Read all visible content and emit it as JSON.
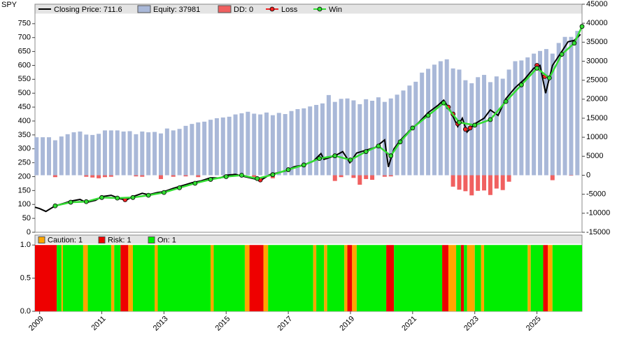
{
  "chart_data": [
    {
      "type": "combo",
      "title": "SPY",
      "xlim": [
        2008.85,
        2026.45
      ],
      "ylim": [
        0,
        820
      ],
      "yticks": [
        0,
        50,
        100,
        150,
        200,
        250,
        300,
        350,
        400,
        450,
        500,
        550,
        600,
        650,
        700,
        750
      ],
      "y2lim": [
        -15000,
        45000
      ],
      "y2ticks": [
        -15000,
        -10000,
        -5000,
        0,
        5000,
        10000,
        15000,
        20000,
        25000,
        30000,
        35000,
        40000,
        45000
      ],
      "series": [
        {
          "name": "Closing Price: 711.6",
          "type": "line",
          "color": "#000000",
          "x": [
            2008.85,
            2009.0,
            2009.2,
            2009.5,
            2009.8,
            2010.0,
            2010.3,
            2010.5,
            2010.8,
            2011.0,
            2011.3,
            2011.6,
            2011.8,
            2012.0,
            2012.3,
            2012.5,
            2012.8,
            2013.0,
            2013.3,
            2013.6,
            2013.9,
            2014.2,
            2014.5,
            2014.8,
            2015.0,
            2015.3,
            2015.6,
            2015.8,
            2016.0,
            2016.1,
            2016.4,
            2016.7,
            2016.9,
            2017.2,
            2017.5,
            2017.8,
            2018.05,
            2018.15,
            2018.5,
            2018.75,
            2018.98,
            2019.2,
            2019.5,
            2019.8,
            2020.1,
            2020.22,
            2020.4,
            2020.6,
            2020.9,
            2021.2,
            2021.5,
            2021.8,
            2022.0,
            2022.2,
            2022.45,
            2022.6,
            2022.75,
            2023.0,
            2023.3,
            2023.5,
            2023.75,
            2024.0,
            2024.3,
            2024.6,
            2024.9,
            2025.1,
            2025.28,
            2025.5,
            2025.8,
            2026.0,
            2026.2,
            2026.4
          ],
          "values": [
            90,
            85,
            75,
            95,
            105,
            112,
            118,
            107,
            115,
            128,
            133,
            120,
            117,
            128,
            140,
            135,
            143,
            146,
            158,
            168,
            178,
            185,
            196,
            195,
            205,
            208,
            200,
            195,
            190,
            186,
            207,
            215,
            220,
            236,
            242,
            255,
            283,
            262,
            275,
            290,
            250,
            285,
            295,
            305,
            332,
            235,
            300,
            330,
            365,
            395,
            430,
            455,
            475,
            440,
            380,
            410,
            360,
            390,
            410,
            440,
            420,
            480,
            520,
            550,
            590,
            600,
            500,
            600,
            650,
            685,
            690,
            711.6
          ]
        },
        {
          "name": "Equity: 37981",
          "type": "bar",
          "axis": "y2",
          "color": "#a9b8d8",
          "x": [
            2008.9,
            2009.1,
            2009.3,
            2009.5,
            2009.7,
            2009.9,
            2010.1,
            2010.3,
            2010.5,
            2010.7,
            2010.9,
            2011.1,
            2011.3,
            2011.5,
            2011.7,
            2011.9,
            2012.1,
            2012.3,
            2012.5,
            2012.7,
            2012.9,
            2013.1,
            2013.3,
            2013.5,
            2013.7,
            2013.9,
            2014.1,
            2014.3,
            2014.5,
            2014.7,
            2014.9,
            2015.1,
            2015.3,
            2015.5,
            2015.7,
            2015.9,
            2016.1,
            2016.3,
            2016.5,
            2016.7,
            2016.9,
            2017.1,
            2017.3,
            2017.5,
            2017.7,
            2017.9,
            2018.1,
            2018.3,
            2018.5,
            2018.7,
            2018.9,
            2019.1,
            2019.3,
            2019.5,
            2019.7,
            2019.9,
            2020.1,
            2020.3,
            2020.5,
            2020.7,
            2020.9,
            2021.1,
            2021.3,
            2021.5,
            2021.7,
            2021.9,
            2022.1,
            2022.3,
            2022.5,
            2022.7,
            2022.9,
            2023.1,
            2023.3,
            2023.5,
            2023.7,
            2023.9,
            2024.1,
            2024.3,
            2024.5,
            2024.7,
            2024.9,
            2025.1,
            2025.3,
            2025.5,
            2025.7,
            2025.9,
            2026.1,
            2026.3
          ],
          "values": [
            10000,
            10000,
            10000,
            9200,
            10200,
            10800,
            11300,
            11500,
            10700,
            10600,
            10900,
            11800,
            11800,
            11800,
            11500,
            11600,
            10800,
            11500,
            11300,
            11400,
            11000,
            12300,
            11800,
            12200,
            13000,
            13500,
            13900,
            14100,
            14600,
            15000,
            15200,
            15400,
            16000,
            16300,
            16700,
            16200,
            16000,
            16500,
            15800,
            16400,
            16100,
            16900,
            17400,
            17600,
            18100,
            18500,
            18900,
            21100,
            19300,
            20100,
            20200,
            19700,
            18700,
            20000,
            19600,
            20500,
            19300,
            20200,
            21200,
            22300,
            23600,
            24600,
            27000,
            28000,
            29100,
            30000,
            30500,
            28100,
            27800,
            25000,
            24200,
            25800,
            26400,
            24500,
            26000,
            25400,
            27800,
            30000,
            30200,
            31000,
            32000,
            32700,
            33200,
            32000,
            34800,
            36400,
            36400,
            37981
          ]
        },
        {
          "name": "DD: 0",
          "type": "bar",
          "axis": "y2",
          "color": "#f06060",
          "x": [
            2009.5,
            2010.5,
            2010.7,
            2010.9,
            2011.1,
            2011.3,
            2012.1,
            2012.3,
            2012.9,
            2013.3,
            2013.7,
            2014.1,
            2015.9,
            2016.5,
            2018.5,
            2018.7,
            2019.1,
            2019.3,
            2019.5,
            2019.7,
            2020.1,
            2020.3,
            2022.3,
            2022.5,
            2022.7,
            2022.9,
            2023.1,
            2023.3,
            2023.5,
            2023.7,
            2023.9,
            2024.1,
            2025.5,
            2026.1
          ],
          "values": [
            -500,
            -400,
            -600,
            -800,
            -500,
            -400,
            -300,
            -400,
            -1000,
            -400,
            -300,
            -500,
            -500,
            -800,
            -1500,
            -500,
            -700,
            -2500,
            -1000,
            -1200,
            -400,
            -300,
            -3000,
            -3800,
            -4200,
            -5300,
            -4100,
            -4000,
            -5200,
            -3500,
            -3900,
            -1700,
            -1300,
            -100
          ]
        },
        {
          "name": "Loss",
          "type": "points",
          "color": "#ee2222",
          "x": [
            2011.75,
            2016.1,
            2022.15,
            2022.3,
            2022.45,
            2022.7,
            2022.85,
            2025.0,
            2025.25
          ],
          "values": [
            117,
            188,
            450,
            425,
            390,
            370,
            375,
            600,
            560
          ]
        },
        {
          "name": "Win",
          "type": "markerline",
          "color": "#33dd33",
          "x": [
            2009.5,
            2010.0,
            2010.5,
            2011.0,
            2011.5,
            2012.0,
            2012.5,
            2013.0,
            2013.5,
            2014.0,
            2014.5,
            2015.0,
            2015.5,
            2016.0,
            2016.5,
            2017.0,
            2017.5,
            2018.0,
            2018.5,
            2019.0,
            2019.5,
            2019.9,
            2020.3,
            2020.6,
            2021.0,
            2021.5,
            2022.0,
            2022.5,
            2023.0,
            2023.5,
            2024.0,
            2024.5,
            2025.0,
            2025.4,
            2025.8,
            2026.2,
            2026.45
          ],
          "values": [
            95,
            108,
            110,
            125,
            123,
            125,
            133,
            143,
            160,
            176,
            190,
            200,
            205,
            193,
            207,
            225,
            242,
            265,
            275,
            260,
            290,
            310,
            275,
            325,
            375,
            420,
            465,
            395,
            385,
            405,
            470,
            530,
            590,
            555,
            640,
            680,
            740
          ]
        }
      ]
    },
    {
      "type": "regime",
      "xlim": [
        2008.85,
        2026.45
      ],
      "xticks": [
        2009,
        2011,
        2013,
        2015,
        2017,
        2019,
        2021,
        2023,
        2025
      ],
      "ylim": [
        0,
        1.15
      ],
      "yticks": [
        {
          "value": 0,
          "label": "0.0"
        },
        {
          "value": 0.5,
          "label": "0.5"
        },
        {
          "value": 1,
          "label": "1.0"
        }
      ],
      "series": [
        {
          "name": "Caution: 1",
          "color": "#ffa500",
          "spans": [
            [
              2009.7,
              2009.75
            ],
            [
              2010.4,
              2010.55
            ],
            [
              2011.3,
              2011.4
            ],
            [
              2011.85,
              2012.0
            ],
            [
              2012.7,
              2012.8
            ],
            [
              2014.5,
              2014.6
            ],
            [
              2015.6,
              2015.75
            ],
            [
              2016.2,
              2016.35
            ],
            [
              2017.8,
              2017.9
            ],
            [
              2018.15,
              2018.25
            ],
            [
              2018.8,
              2018.9
            ],
            [
              2019.05,
              2019.2
            ],
            [
              2022.15,
              2022.4
            ],
            [
              2022.75,
              2023.0
            ],
            [
              2023.2,
              2023.3
            ],
            [
              2024.7,
              2024.8
            ],
            [
              2025.35,
              2025.5
            ]
          ]
        },
        {
          "name": "Risk: 1",
          "color": "#ee0000",
          "spans": [
            [
              2008.85,
              2009.55
            ],
            [
              2011.6,
              2011.85
            ],
            [
              2015.75,
              2016.2
            ],
            [
              2018.9,
              2019.05
            ],
            [
              2020.15,
              2020.4
            ],
            [
              2021.95,
              2022.15
            ],
            [
              2022.55,
              2022.65
            ],
            [
              2025.2,
              2025.35
            ]
          ]
        },
        {
          "name": "On: 1",
          "color": "#00ee00",
          "spans": [
            [
              2009.55,
              2009.7
            ],
            [
              2009.75,
              2010.4
            ],
            [
              2010.55,
              2011.3
            ],
            [
              2011.4,
              2011.6
            ],
            [
              2012.0,
              2012.7
            ],
            [
              2012.8,
              2014.5
            ],
            [
              2014.6,
              2015.6
            ],
            [
              2016.35,
              2017.8
            ],
            [
              2017.9,
              2018.15
            ],
            [
              2018.25,
              2018.8
            ],
            [
              2019.2,
              2020.15
            ],
            [
              2020.4,
              2021.95
            ],
            [
              2022.4,
              2022.55
            ],
            [
              2022.65,
              2022.75
            ],
            [
              2023.0,
              2023.2
            ],
            [
              2023.3,
              2024.7
            ],
            [
              2024.8,
              2025.2
            ],
            [
              2025.5,
              2026.45
            ]
          ]
        }
      ]
    }
  ]
}
